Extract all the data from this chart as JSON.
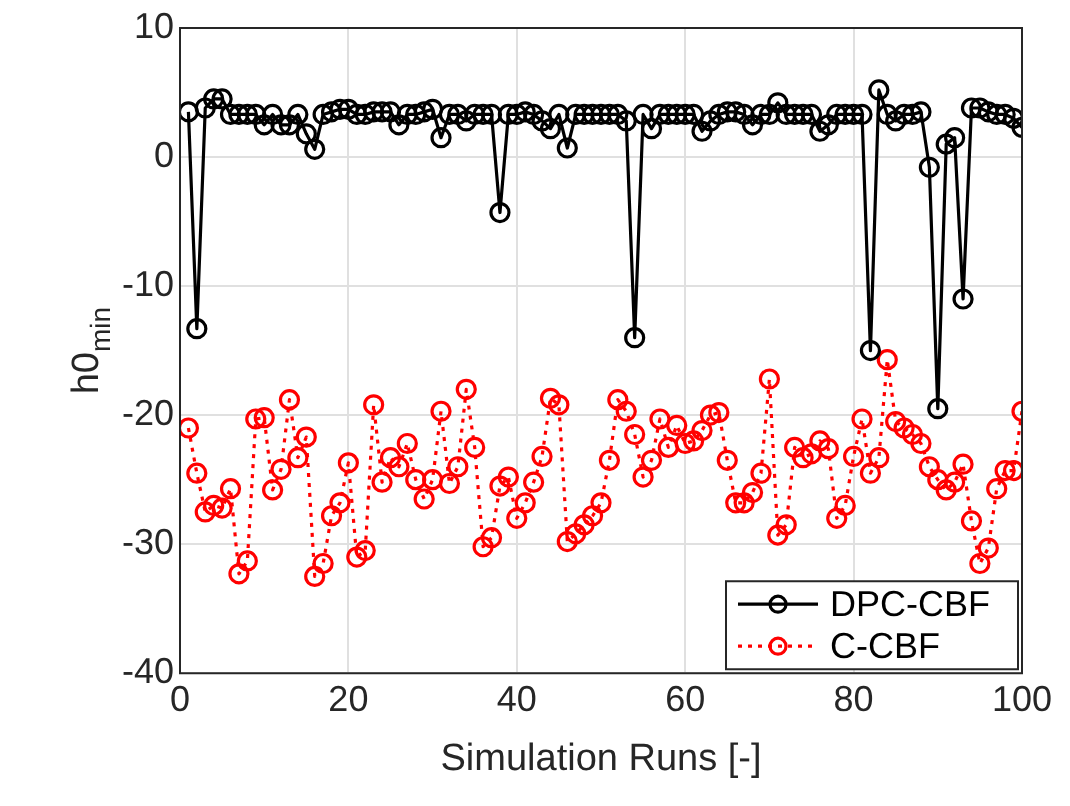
{
  "chart_data": {
    "type": "line",
    "xlabel": "Simulation Runs [-]",
    "ylabel": "h0$_{min}$",
    "x": [
      1,
      2,
      3,
      4,
      5,
      6,
      7,
      8,
      9,
      10,
      11,
      12,
      13,
      14,
      15,
      16,
      17,
      18,
      19,
      20,
      21,
      22,
      23,
      24,
      25,
      26,
      27,
      28,
      29,
      30,
      31,
      32,
      33,
      34,
      35,
      36,
      37,
      38,
      39,
      40,
      41,
      42,
      43,
      44,
      45,
      46,
      47,
      48,
      49,
      50,
      51,
      52,
      53,
      54,
      55,
      56,
      57,
      58,
      59,
      60,
      61,
      62,
      63,
      64,
      65,
      66,
      67,
      68,
      69,
      70,
      71,
      72,
      73,
      74,
      75,
      76,
      77,
      78,
      79,
      80,
      81,
      82,
      83,
      84,
      85,
      86,
      87,
      88,
      89,
      90,
      91,
      92,
      93,
      94,
      95,
      96,
      97,
      98,
      99,
      100
    ],
    "xlim": [
      0,
      100
    ],
    "xticks": [
      0,
      20,
      40,
      60,
      80,
      100
    ],
    "ylim": [
      -40,
      10
    ],
    "yticks": [
      -40,
      -30,
      -20,
      -10,
      0,
      10
    ],
    "grid": true,
    "legend": "bottom right",
    "marker": "circle",
    "series": [
      {
        "name": "DPC-CBF",
        "color": "#000000",
        "line_style": "solid",
        "values": [
          3.5,
          -13.3,
          3.8,
          4.5,
          4.5,
          3.3,
          3.3,
          3.3,
          3.3,
          2.5,
          3.3,
          2.5,
          2.5,
          3.3,
          1.8,
          0.6,
          3.3,
          3.5,
          3.7,
          3.7,
          3.3,
          3.3,
          3.5,
          3.5,
          3.5,
          2.5,
          3.3,
          3.3,
          3.5,
          3.7,
          1.5,
          3.3,
          3.3,
          2.8,
          3.3,
          3.3,
          3.3,
          -4.3,
          3.3,
          3.3,
          3.5,
          3.3,
          2.8,
          2.2,
          3.3,
          0.7,
          3.3,
          3.3,
          3.3,
          3.3,
          3.3,
          3.3,
          2.8,
          -14,
          3.3,
          2.2,
          3.3,
          3.3,
          3.3,
          3.3,
          3.3,
          2,
          2.8,
          3.3,
          3.5,
          3.5,
          3.3,
          2.5,
          3.3,
          3.3,
          4.2,
          3.3,
          3.3,
          3.3,
          3.3,
          2,
          2.5,
          3.3,
          3.3,
          3.3,
          3.3,
          -15,
          5.2,
          3.3,
          2.8,
          3.3,
          3.3,
          3.5,
          -0.8,
          -19.5,
          1,
          1.5,
          -11,
          3.8,
          3.8,
          3.5,
          3.3,
          3.3,
          3,
          2.3
        ]
      },
      {
        "name": "C-CBF",
        "color": "#ff0000",
        "line_style": "dotted",
        "values": [
          -21,
          -24.5,
          -27.5,
          -27,
          -27.2,
          -25.7,
          -32.3,
          -31.3,
          -20.3,
          -20.2,
          -25.8,
          -24.2,
          -18.8,
          -23.3,
          -21.7,
          -32.5,
          -31.5,
          -27.8,
          -26.8,
          -23.7,
          -31,
          -30.5,
          -19.2,
          -25.2,
          -23.3,
          -24,
          -22.2,
          -25,
          -26.5,
          -25,
          -19.7,
          -25.3,
          -24,
          -18,
          -22.5,
          -30.2,
          -29.5,
          -25.5,
          -24.8,
          -28,
          -26.8,
          -25.2,
          -23.2,
          -18.7,
          -19.2,
          -29.8,
          -29.2,
          -28.5,
          -27.8,
          -26.8,
          -23.5,
          -18.8,
          -19.7,
          -21.5,
          -24.8,
          -23.5,
          -20.3,
          -22.5,
          -20.8,
          -22.2,
          -22,
          -21.2,
          -20,
          -19.8,
          -23.5,
          -26.8,
          -26.8,
          -26,
          -24.5,
          -17.2,
          -29.3,
          -28.5,
          -22.5,
          -23.3,
          -23,
          -22,
          -22.6,
          -28,
          -27,
          -23.2,
          -20.3,
          -24.5,
          -23.3,
          -15.7,
          -20.5,
          -21,
          -21.5,
          -22.2,
          -24,
          -25,
          -25.8,
          -25.2,
          -23.8,
          -28.2,
          -31.5,
          -30.3,
          -25.7,
          -24.3,
          -24.3,
          -19.7
        ]
      }
    ]
  }
}
